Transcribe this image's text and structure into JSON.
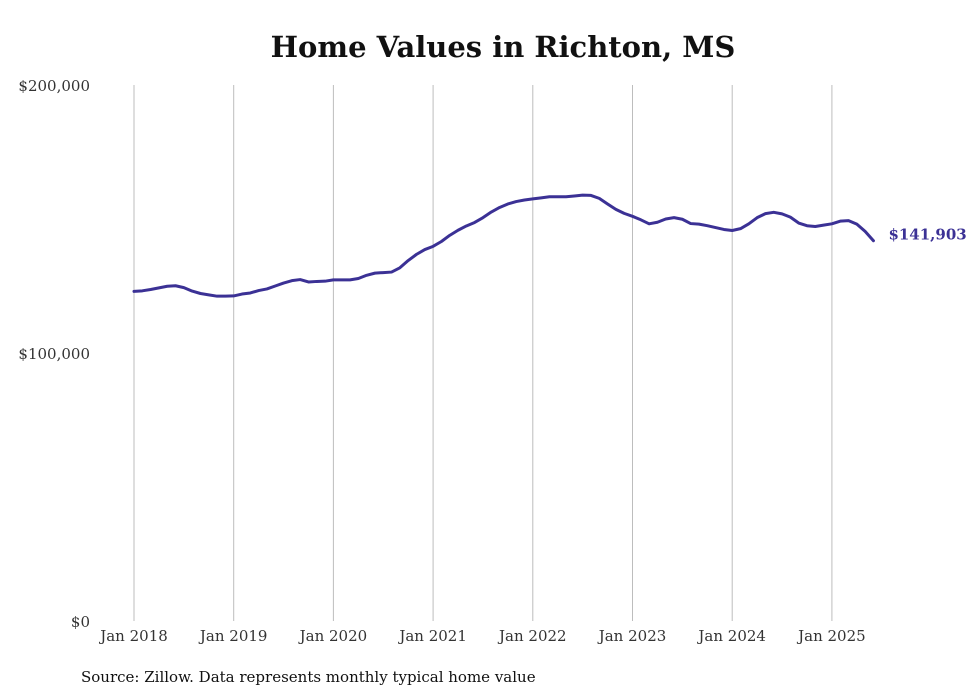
{
  "chart_data": {
    "type": "line",
    "title": "Home Values in Richton, MS",
    "source_note": "Source: Zillow. Data represents monthly typical home value",
    "x_tick_labels": [
      "Jan 2018",
      "Jan 2019",
      "Jan 2020",
      "Jan 2021",
      "Jan 2022",
      "Jan 2023",
      "Jan 2024",
      "Jan 2025"
    ],
    "y_tick_labels": [
      "$0",
      "$100,000",
      "$200,000"
    ],
    "y_ticks": [
      0,
      100000,
      200000
    ],
    "ylim": [
      0,
      200000
    ],
    "xlim": [
      "2018-01",
      "2025-06"
    ],
    "grid": "vertical",
    "line_color": "#3b3195",
    "end_label": "$141,903",
    "series": [
      {
        "x": [
          "2018-01",
          "2018-02",
          "2018-03",
          "2018-04",
          "2018-05",
          "2018-06",
          "2018-07",
          "2018-08",
          "2018-09",
          "2018-10",
          "2018-11",
          "2018-12",
          "2019-01",
          "2019-02",
          "2019-03",
          "2019-04",
          "2019-05",
          "2019-06",
          "2019-07",
          "2019-08",
          "2019-09",
          "2019-10",
          "2019-11",
          "2019-12",
          "2020-01",
          "2020-02",
          "2020-03",
          "2020-04",
          "2020-05",
          "2020-06",
          "2020-07",
          "2020-08",
          "2020-09",
          "2020-10",
          "2020-11",
          "2020-12",
          "2021-01",
          "2021-02",
          "2021-03",
          "2021-04",
          "2021-05",
          "2021-06",
          "2021-07",
          "2021-08",
          "2021-09",
          "2021-10",
          "2021-11",
          "2021-12",
          "2022-01",
          "2022-02",
          "2022-03",
          "2022-04",
          "2022-05",
          "2022-06",
          "2022-07",
          "2022-08",
          "2022-09",
          "2022-10",
          "2022-11",
          "2022-12",
          "2023-01",
          "2023-02",
          "2023-03",
          "2023-04",
          "2023-05",
          "2023-06",
          "2023-07",
          "2023-08",
          "2023-09",
          "2023-10",
          "2023-11",
          "2023-12",
          "2024-01",
          "2024-02",
          "2024-03",
          "2024-04",
          "2024-05",
          "2024-06",
          "2024-07",
          "2024-08",
          "2024-09",
          "2024-10",
          "2024-11",
          "2024-12",
          "2025-01",
          "2025-02",
          "2025-03",
          "2025-04",
          "2025-05",
          "2025-06"
        ],
        "values": [
          123000,
          123200,
          123700,
          124300,
          124900,
          125100,
          124400,
          123100,
          122200,
          121700,
          121200,
          121200,
          121300,
          122000,
          122400,
          123300,
          123900,
          125000,
          126100,
          127000,
          127400,
          126500,
          126700,
          126800,
          127300,
          127300,
          127300,
          127800,
          129000,
          129800,
          130000,
          130200,
          131800,
          134500,
          136800,
          138600,
          139800,
          141600,
          143900,
          145800,
          147400,
          148700,
          150500,
          152600,
          154300,
          155600,
          156500,
          157100,
          157500,
          157900,
          158300,
          158300,
          158300,
          158600,
          158900,
          158800,
          157700,
          155600,
          153600,
          152100,
          151000,
          149700,
          148200,
          148800,
          150000,
          150500,
          149900,
          148300,
          148100,
          147500,
          146800,
          146100,
          145700,
          146400,
          148200,
          150500,
          152000,
          152500,
          151900,
          150700,
          148500,
          147500,
          147200,
          147700,
          148200,
          149200,
          149400,
          148100,
          145400,
          141903
        ]
      }
    ]
  }
}
